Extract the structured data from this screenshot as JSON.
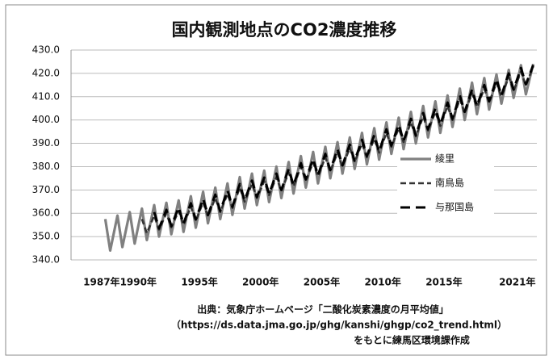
{
  "chart_data": {
    "type": "line",
    "title": "国内観測地点のCO2濃度推移",
    "xlim": [
      1984.5,
      2022.6
    ],
    "xticks": [
      {
        "value": 1987,
        "label": "1987年"
      },
      {
        "value": 1990,
        "label": "1990年"
      },
      {
        "value": 1995,
        "label": "1995年"
      },
      {
        "value": 2000,
        "label": "2000年"
      },
      {
        "value": 2005,
        "label": "2005年"
      },
      {
        "value": 2010,
        "label": "2010年"
      },
      {
        "value": 2015,
        "label": "2015年"
      },
      {
        "value": 2021,
        "label": "2021年"
      }
    ],
    "ylim": [
      340,
      430
    ],
    "yticks": [
      {
        "value": 340,
        "label": "340.0"
      },
      {
        "value": 350,
        "label": "350.0"
      },
      {
        "value": 360,
        "label": "360.0"
      },
      {
        "value": 370,
        "label": "370.0"
      },
      {
        "value": 380,
        "label": "380.0"
      },
      {
        "value": 390,
        "label": "390.0"
      },
      {
        "value": 400,
        "label": "400.0"
      },
      {
        "value": 410,
        "label": "410.0"
      },
      {
        "value": 420,
        "label": "420.0"
      },
      {
        "value": 430,
        "label": "430.0"
      }
    ],
    "grid": true,
    "series": [
      {
        "name": "綾里",
        "color": "#808080",
        "x": [
          1987.3,
          1987.7,
          1988.3,
          1988.7,
          1989.3,
          1989.7,
          1990.3,
          1990.7,
          1991.3,
          1991.7,
          1992.3,
          1992.7,
          1993.3,
          1993.7,
          1994.3,
          1994.7,
          1995.3,
          1995.7,
          1996.3,
          1996.7,
          1997.3,
          1997.7,
          1998.3,
          1998.7,
          1999.3,
          1999.7,
          2000.3,
          2000.7,
          2001.3,
          2001.7,
          2002.3,
          2002.7,
          2003.3,
          2003.7,
          2004.3,
          2004.7,
          2005.3,
          2005.7,
          2006.3,
          2006.7,
          2007.3,
          2007.7,
          2008.3,
          2008.7,
          2009.3,
          2009.7,
          2010.3,
          2010.7,
          2011.3,
          2011.7,
          2012.3,
          2012.7,
          2013.3,
          2013.7,
          2014.3,
          2014.7,
          2015.3,
          2015.7,
          2016.3,
          2016.7,
          2017.3,
          2017.7,
          2018.3,
          2018.7,
          2019.3,
          2019.7,
          2020.3,
          2020.7,
          2021.3,
          2021.7,
          2022.3
        ],
        "values": [
          357.5,
          344.0,
          359.0,
          345.5,
          360.5,
          347.0,
          362.0,
          348.5,
          363.5,
          350.0,
          364.5,
          351.0,
          365.5,
          352.0,
          367.3,
          353.8,
          369.2,
          355.7,
          371.0,
          357.5,
          372.8,
          359.3,
          375.5,
          362.0,
          377.0,
          363.5,
          378.3,
          364.8,
          380.0,
          366.5,
          382.0,
          368.5,
          384.5,
          371.0,
          386.3,
          372.8,
          388.5,
          375.0,
          390.5,
          377.0,
          392.5,
          379.0,
          394.5,
          381.0,
          396.5,
          383.0,
          399.0,
          385.5,
          401.0,
          387.5,
          403.5,
          390.0,
          406.0,
          392.5,
          408.0,
          394.5,
          410.5,
          397.0,
          413.5,
          400.0,
          416.0,
          402.5,
          418.0,
          404.5,
          419.5,
          407.0,
          421.5,
          409.5,
          423.5,
          411.0,
          424.0
        ]
      },
      {
        "name": "南鳥島",
        "color": "#333333",
        "x": [
          1990.3,
          1990.7,
          1991.3,
          1991.7,
          1992.3,
          1992.7,
          1993.3,
          1993.7,
          1994.3,
          1994.7,
          1995.3,
          1995.7,
          1996.3,
          1996.7,
          1997.3,
          1997.7,
          1998.3,
          1998.7,
          1999.3,
          1999.7,
          2000.3,
          2000.7,
          2001.3,
          2001.7,
          2002.3,
          2002.7,
          2003.3,
          2003.7,
          2004.3,
          2004.7,
          2005.3,
          2005.7,
          2006.3,
          2006.7,
          2007.3,
          2007.7,
          2008.3,
          2008.7,
          2009.3,
          2009.7,
          2010.3,
          2010.7,
          2011.3,
          2011.7,
          2012.3,
          2012.7,
          2013.3,
          2013.7,
          2014.3,
          2014.7,
          2015.3,
          2015.7,
          2016.3,
          2016.7,
          2017.3,
          2017.7,
          2018.3,
          2018.7,
          2019.3,
          2019.7,
          2020.3,
          2020.7,
          2021.3,
          2021.7,
          2022.3
        ],
        "values": [
          357.5,
          351.5,
          359.0,
          353.0,
          360.0,
          354.0,
          361.0,
          355.0,
          362.8,
          356.8,
          364.7,
          358.7,
          366.5,
          360.5,
          368.3,
          362.3,
          371.0,
          365.0,
          372.5,
          366.5,
          373.8,
          367.8,
          375.5,
          369.5,
          377.5,
          371.5,
          380.0,
          374.0,
          381.8,
          375.8,
          384.0,
          378.0,
          386.0,
          380.0,
          388.0,
          382.0,
          390.0,
          384.0,
          392.0,
          386.0,
          394.5,
          388.5,
          396.5,
          390.5,
          399.0,
          393.0,
          401.5,
          395.5,
          403.5,
          397.5,
          406.0,
          400.0,
          409.0,
          403.0,
          411.5,
          405.5,
          413.5,
          407.5,
          416.0,
          410.0,
          418.5,
          412.5,
          420.8,
          414.8,
          423.0
        ]
      },
      {
        "name": "与那国島",
        "color": "#000000",
        "x": [
          1991.3,
          1991.7,
          1992.3,
          1992.7,
          1993.3,
          1993.7,
          1994.3,
          1994.7,
          1995.3,
          1995.7,
          1996.3,
          1996.7,
          1997.3,
          1997.7,
          1998.3,
          1998.7,
          1999.3,
          1999.7,
          2000.3,
          2000.7,
          2001.3,
          2001.7,
          2002.3,
          2002.7,
          2003.3,
          2003.7,
          2004.3,
          2004.7,
          2005.3,
          2005.7,
          2006.3,
          2006.7,
          2007.3,
          2007.7,
          2008.3,
          2008.7,
          2009.3,
          2009.7,
          2010.3,
          2010.7,
          2011.3,
          2011.7,
          2012.3,
          2012.7,
          2013.3,
          2013.7,
          2014.3,
          2014.7,
          2015.3,
          2015.7,
          2016.3,
          2016.7,
          2017.3,
          2017.7,
          2018.3,
          2018.7,
          2019.3,
          2019.7,
          2020.3,
          2020.7,
          2021.3,
          2021.7,
          2022.3
        ],
        "values": [
          360.5,
          353.5,
          361.5,
          354.5,
          362.5,
          355.5,
          364.3,
          357.3,
          366.2,
          359.2,
          368.0,
          361.0,
          369.8,
          362.8,
          372.5,
          365.5,
          374.0,
          367.0,
          375.3,
          368.3,
          377.0,
          370.0,
          379.0,
          372.0,
          381.5,
          374.5,
          383.3,
          376.3,
          385.5,
          378.5,
          387.5,
          380.5,
          389.5,
          382.5,
          391.5,
          384.5,
          393.5,
          386.5,
          396.0,
          389.0,
          398.0,
          391.0,
          400.5,
          393.5,
          403.0,
          396.0,
          405.0,
          398.0,
          407.5,
          400.5,
          410.5,
          403.5,
          413.0,
          406.0,
          415.0,
          408.0,
          417.5,
          410.5,
          420.0,
          413.0,
          422.3,
          415.3,
          423.5
        ]
      }
    ],
    "source": [
      "出典：気象庁ホームページ「二酸化炭素濃度の月平均値」",
      "（https://ds.data.jma.go.jp/ghg/kanshi/ghgp/co2_trend.html）",
      "をもとに練馬区環境課作成"
    ]
  }
}
